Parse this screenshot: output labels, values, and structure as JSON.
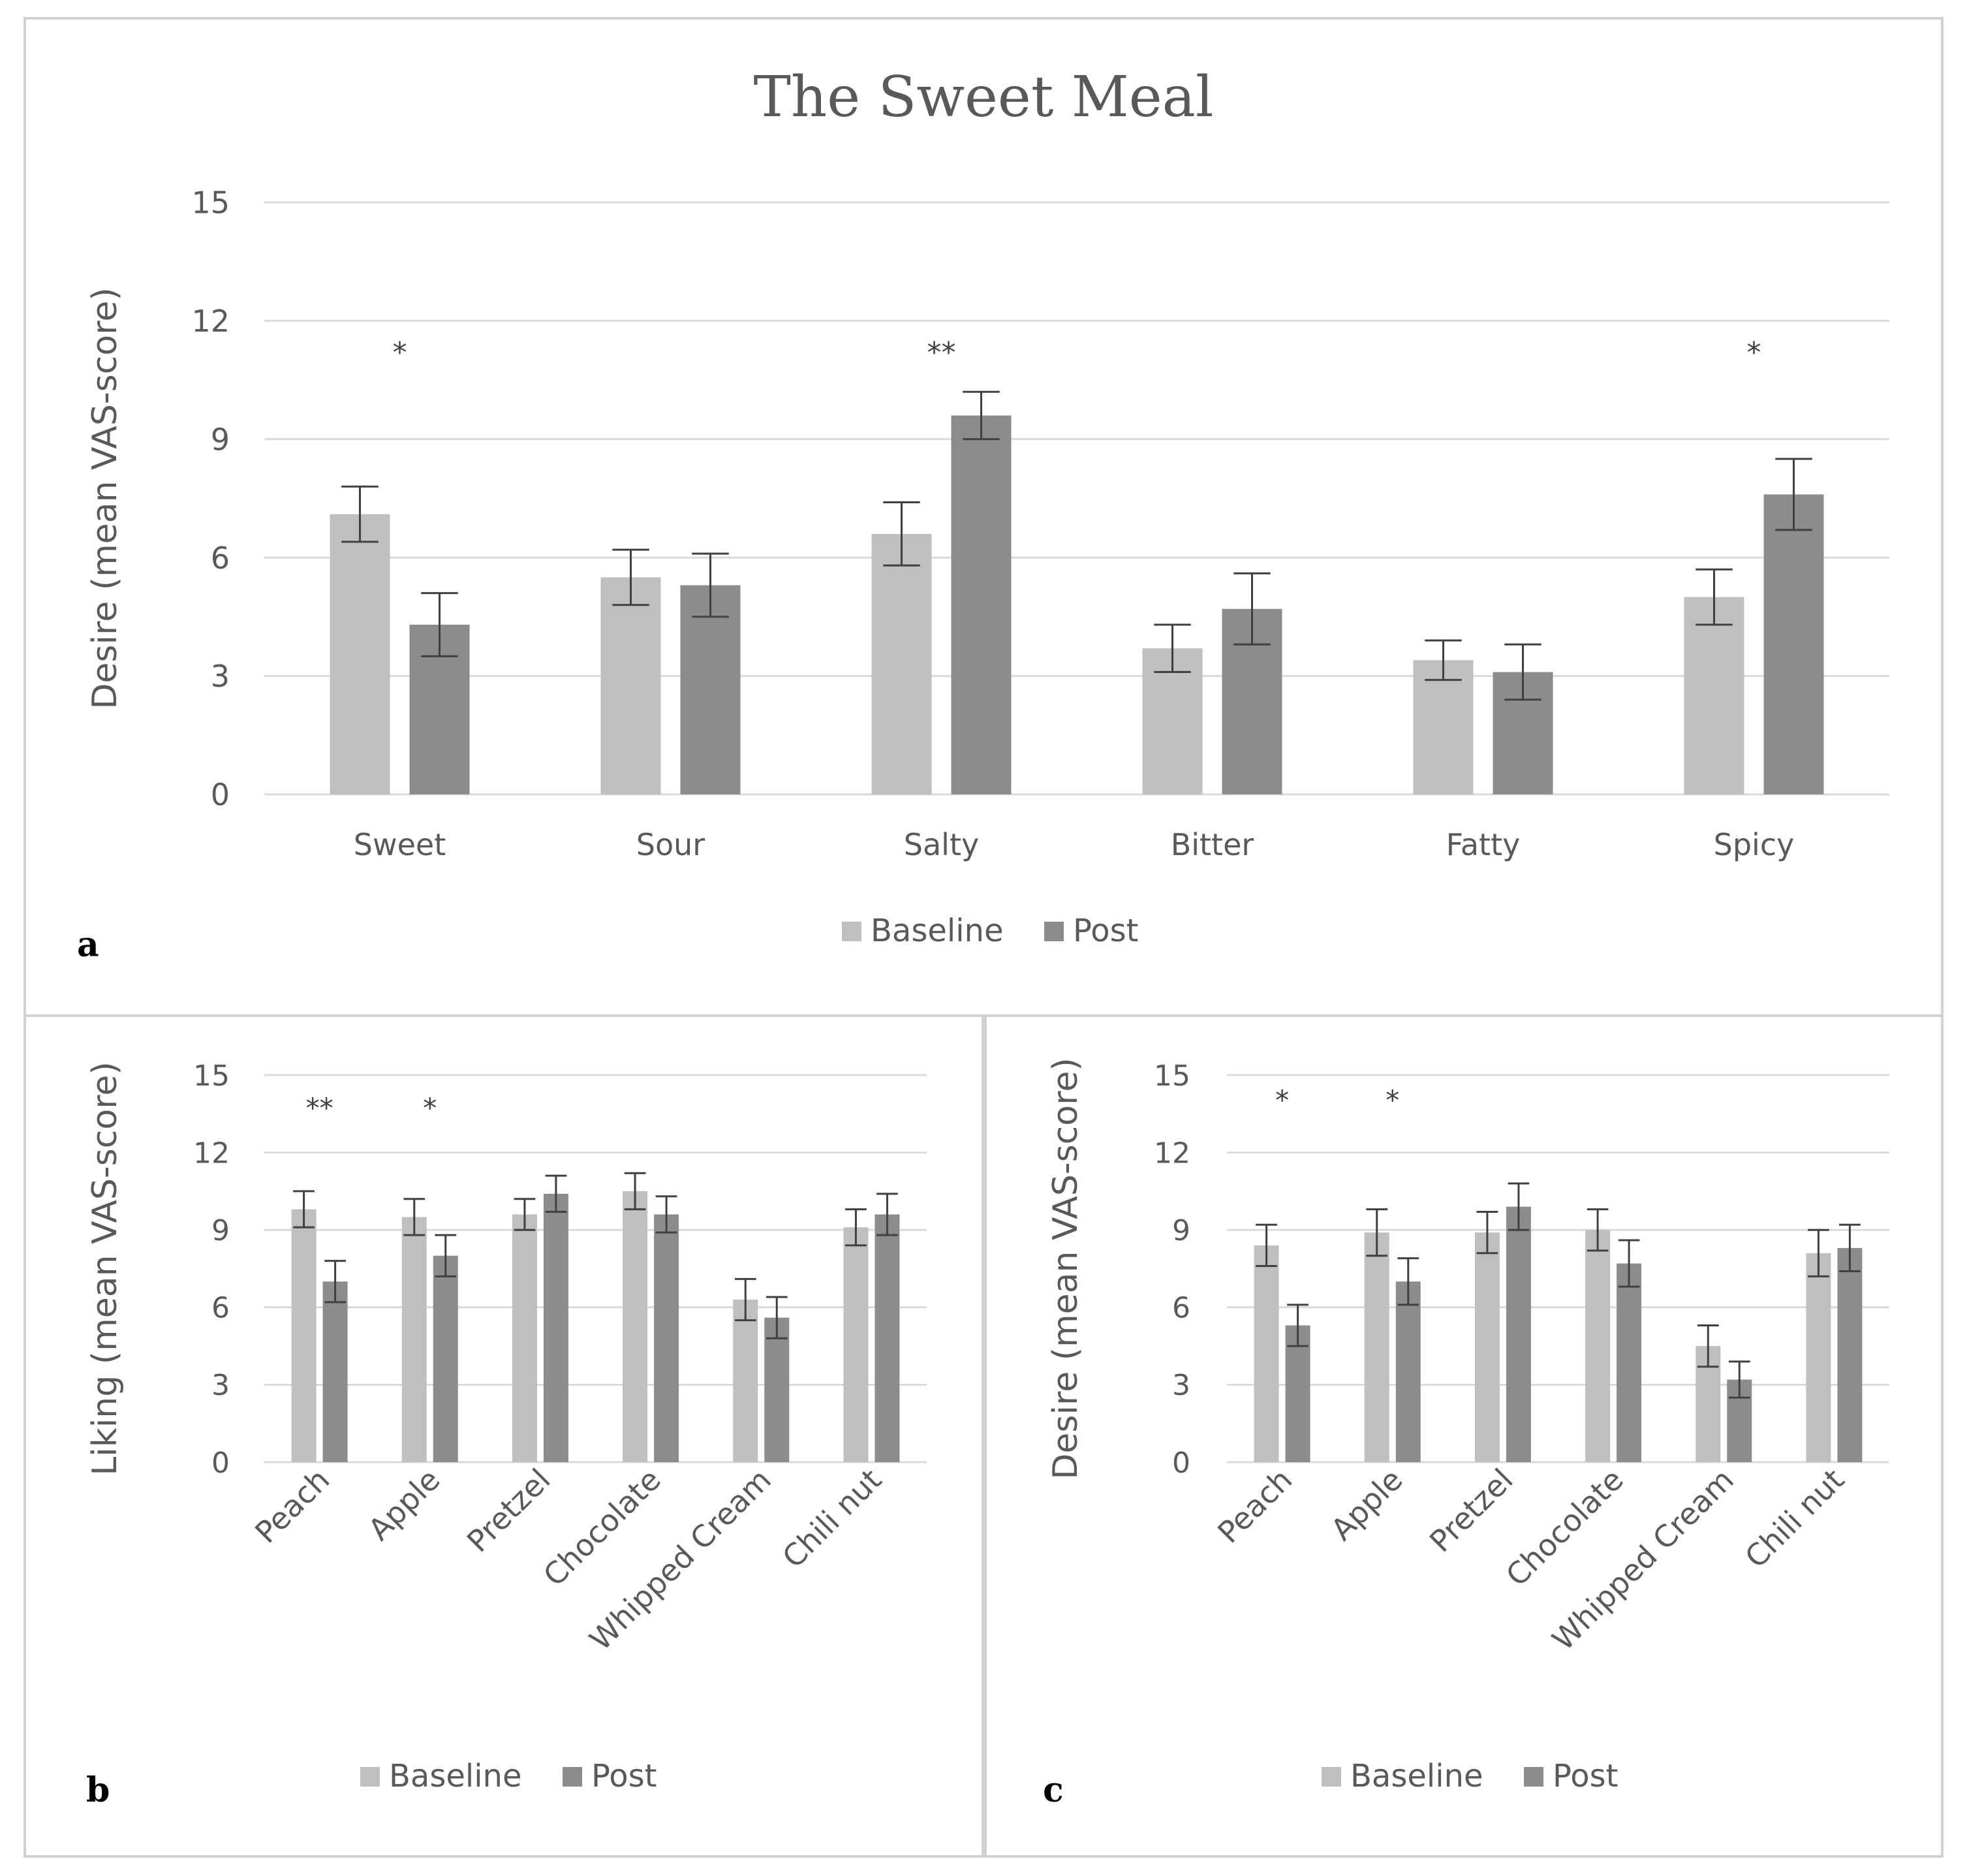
{
  "figure": {
    "title": "The Sweet Meal"
  },
  "colors": {
    "baseline": "#bfbfbf",
    "post": "#8c8c8c",
    "grid": "#d9d9d9",
    "border": "#d0d0d0",
    "error_bar": "#404040",
    "text": "#595959"
  },
  "chart_data": [
    {
      "panel": "a",
      "type": "bar",
      "title": "The Sweet Meal",
      "xlabel": "",
      "ylabel": "Desire (mean VAS-score)",
      "ylim": [
        0,
        15
      ],
      "yticks": [
        "0",
        "3",
        "6",
        "9",
        "12",
        "15"
      ],
      "grid": true,
      "legend": "bottom-center",
      "categories": [
        "Sweet",
        "Sour",
        "Salty",
        "Bitter",
        "Fatty",
        "Spicy"
      ],
      "significance": [
        "*",
        "",
        "**",
        "",
        "",
        "*"
      ],
      "series": [
        {
          "name": "Baseline",
          "values": [
            7.1,
            5.5,
            6.6,
            3.7,
            3.4,
            5.0
          ],
          "errors": [
            0.7,
            0.7,
            0.8,
            0.6,
            0.5,
            0.7
          ]
        },
        {
          "name": "Post",
          "values": [
            4.3,
            5.3,
            9.6,
            4.7,
            3.1,
            7.6
          ],
          "errors": [
            0.8,
            0.8,
            0.6,
            0.9,
            0.7,
            0.9
          ]
        }
      ]
    },
    {
      "panel": "b",
      "type": "bar",
      "title": "",
      "xlabel": "",
      "ylabel": "Liking (mean VAS-score)",
      "ylim": [
        0,
        15
      ],
      "yticks": [
        "0",
        "3",
        "6",
        "9",
        "12",
        "15"
      ],
      "grid": true,
      "legend": "bottom-center",
      "categories": [
        "Peach",
        "Apple",
        "Pretzel",
        "Chocolate",
        "Whipped Cream",
        "Chili nut"
      ],
      "significance": [
        "**",
        "*",
        "",
        "",
        "",
        ""
      ],
      "series": [
        {
          "name": "Baseline",
          "values": [
            9.8,
            9.5,
            9.6,
            10.5,
            6.3,
            9.1
          ],
          "errors": [
            0.7,
            0.7,
            0.6,
            0.7,
            0.8,
            0.7
          ]
        },
        {
          "name": "Post",
          "values": [
            7.0,
            8.0,
            10.4,
            9.6,
            5.6,
            9.6
          ],
          "errors": [
            0.8,
            0.8,
            0.7,
            0.7,
            0.8,
            0.8
          ]
        }
      ]
    },
    {
      "panel": "c",
      "type": "bar",
      "title": "",
      "xlabel": "",
      "ylabel": "Desire (mean VAS-score)",
      "ylim": [
        0,
        15
      ],
      "yticks": [
        "0",
        "3",
        "6",
        "9",
        "12",
        "15"
      ],
      "grid": true,
      "legend": "bottom-center",
      "categories": [
        "Peach",
        "Apple",
        "Pretzel",
        "Chocolate",
        "Whipped Cream",
        "Chili nut"
      ],
      "significance": [
        "*",
        "*",
        "",
        "",
        "",
        ""
      ],
      "series": [
        {
          "name": "Baseline",
          "values": [
            8.4,
            8.9,
            8.9,
            9.0,
            4.5,
            8.1
          ],
          "errors": [
            0.8,
            0.9,
            0.8,
            0.8,
            0.8,
            0.9
          ]
        },
        {
          "name": "Post",
          "values": [
            5.3,
            7.0,
            9.9,
            7.7,
            3.2,
            8.3
          ],
          "errors": [
            0.8,
            0.9,
            0.9,
            0.9,
            0.7,
            0.9
          ]
        }
      ]
    }
  ]
}
